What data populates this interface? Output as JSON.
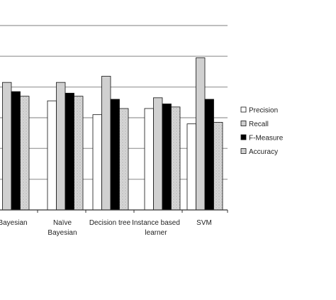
{
  "chart_data": {
    "type": "bar",
    "categories": [
      [
        "Bayesian"
      ],
      [
        "Naïve",
        "Bayesian"
      ],
      [
        "Decision tree"
      ],
      [
        "Instance based",
        "learner"
      ],
      [
        "SVM"
      ]
    ],
    "series": [
      {
        "name": "Precision",
        "values": [
          null,
          0.71,
          0.62,
          0.66,
          0.56
        ]
      },
      {
        "name": "Recall",
        "values": [
          0.83,
          0.83,
          0.87,
          0.73,
          0.99
        ]
      },
      {
        "name": "F-Measure",
        "values": [
          0.77,
          0.76,
          0.72,
          0.69,
          0.72
        ]
      },
      {
        "name": "Accuracy",
        "values": [
          0.74,
          0.74,
          0.66,
          0.67,
          0.57
        ]
      }
    ],
    "ylim": [
      0,
      1.2
    ],
    "grid": true,
    "legend": "right",
    "colors": {
      "Precision": "#ffffff",
      "Recall": "#cfcfcf",
      "F-Measure": "#000000",
      "Accuracy": "#dcdcdc"
    }
  }
}
